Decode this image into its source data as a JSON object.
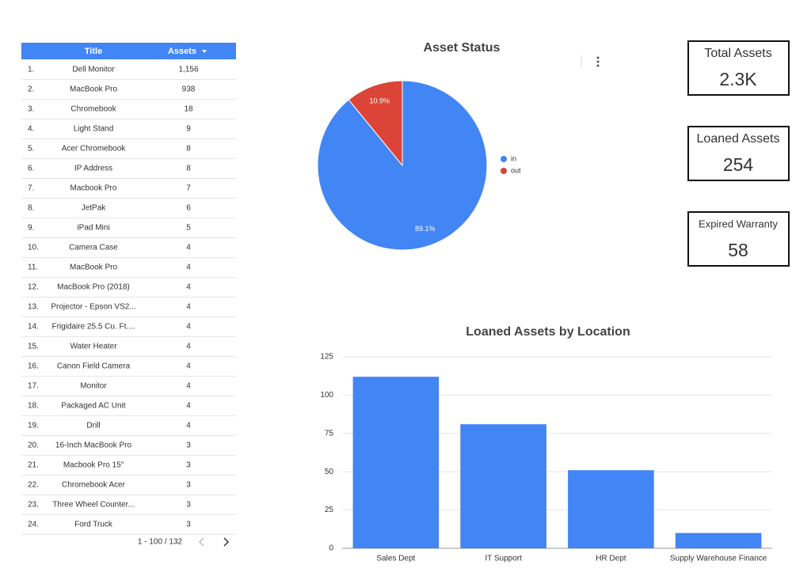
{
  "table": {
    "headers": [
      "Title",
      "Assets"
    ],
    "rows": [
      [
        "1.",
        "Dell Monitor",
        "1,156"
      ],
      [
        "2.",
        "MacBook Pro",
        "938"
      ],
      [
        "3.",
        "Chromebook",
        "18"
      ],
      [
        "4.",
        "Light Stand",
        "9"
      ],
      [
        "5.",
        "Acer Chromebook",
        "8"
      ],
      [
        "6.",
        "IP Address",
        "8"
      ],
      [
        "7.",
        "Macbook Pro",
        "7"
      ],
      [
        "8.",
        "JetPak",
        "6"
      ],
      [
        "9.",
        "iPad Mini",
        "5"
      ],
      [
        "10.",
        "Camera Case",
        "4"
      ],
      [
        "11.",
        "MacBook Pro",
        "4"
      ],
      [
        "12.",
        "MacBook Pro (2018)",
        "4"
      ],
      [
        "13.",
        "Projector - Epson VS2...",
        "4"
      ],
      [
        "14.",
        "Frigidaire 25.5 Cu. Ft....",
        "4"
      ],
      [
        "15.",
        "Water Heater",
        "4"
      ],
      [
        "16.",
        "Canon Field Camera",
        "4"
      ],
      [
        "17.",
        "Monitor",
        "4"
      ],
      [
        "18.",
        "Packaged AC Unit",
        "4"
      ],
      [
        "19.",
        "Drill",
        "4"
      ],
      [
        "20.",
        "16-Inch MacBook Pro",
        "3"
      ],
      [
        "21.",
        "Macbook Pro 15\"",
        "3"
      ],
      [
        "22.",
        "Chromebook Acer",
        "3"
      ],
      [
        "23.",
        "Three Wheel Counter...",
        "3"
      ],
      [
        "24.",
        "Ford Truck",
        "3"
      ]
    ],
    "pagination": "1 - 100 / 132"
  },
  "scorecards": [
    {
      "label": "Total Assets",
      "value": "2.3K"
    },
    {
      "label": "Loaned Assets",
      "value": "254"
    },
    {
      "label": "Expired Warranty",
      "value": "58"
    }
  ],
  "chart_data": [
    {
      "type": "pie",
      "title": "Asset Status",
      "categories": [
        "in",
        "out"
      ],
      "values": [
        89.1,
        10.9
      ],
      "value_labels": [
        "89.1%",
        "10.9%"
      ],
      "colors": [
        "#4285f4",
        "#db4437"
      ]
    },
    {
      "type": "bar",
      "title": "Loaned Assets by Location",
      "categories": [
        "Sales Dept",
        "IT Support",
        "HR Dept",
        "Supply Warehouse Finance"
      ],
      "values": [
        112,
        81,
        51,
        10
      ],
      "color": "#4285f4",
      "ylim": [
        0,
        125
      ],
      "yticks": [
        0,
        25,
        50,
        75,
        100,
        125
      ],
      "grid": true
    }
  ]
}
